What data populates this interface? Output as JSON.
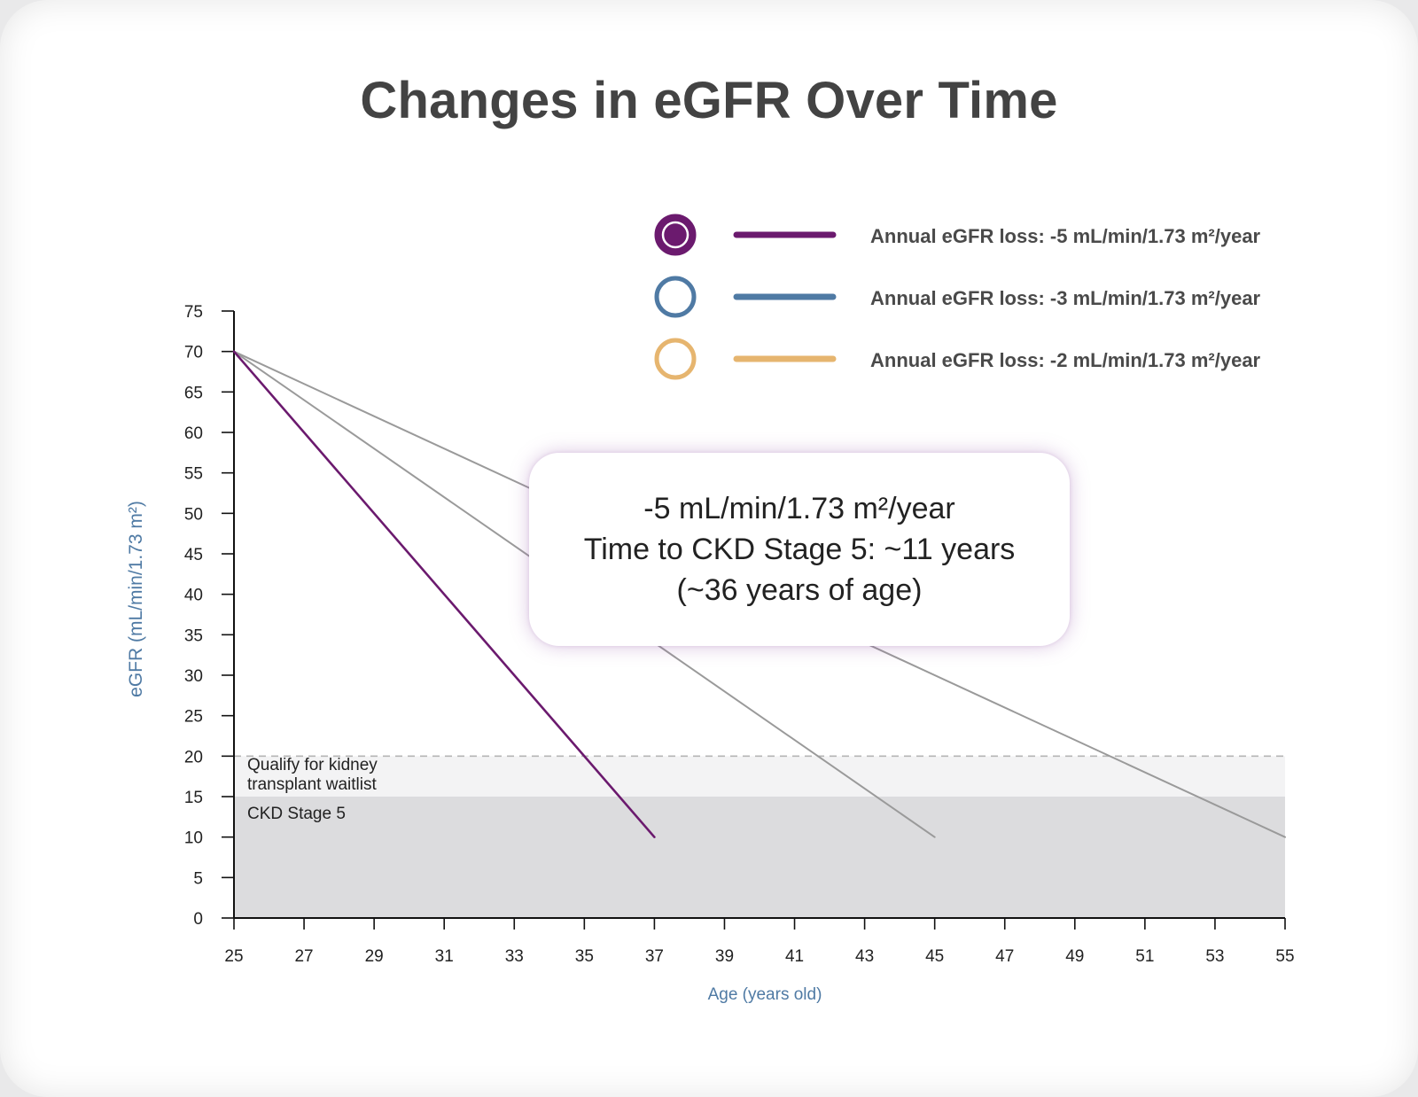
{
  "title": "Changes in eGFR Over Time",
  "legend": [
    {
      "label": "Annual eGFR loss: -5 mL/min/1.73 m²/year",
      "color": "#6b1a6e",
      "marker": "filled-ring"
    },
    {
      "label": "Annual eGFR loss: -3 mL/min/1.73 m²/year",
      "color": "#4f7aa4",
      "marker": "ring"
    },
    {
      "label": "Annual eGFR loss: -2 mL/min/1.73 m²/year",
      "color": "#e6b56f",
      "marker": "ring"
    }
  ],
  "callout": {
    "line1": "-5 mL/min/1.73 m²/year",
    "line2": "Time to CKD Stage 5: ~11 years",
    "line3": "(~36 years of age)"
  },
  "bands": {
    "waitlist_label_1": "Qualify for kidney",
    "waitlist_label_2": "transplant waitlist",
    "stage5_label": "CKD Stage 5"
  },
  "chart_data": {
    "type": "line",
    "xlabel": "Age (years old)",
    "ylabel": "eGFR (mL/min/1.73 m²)",
    "xlim": [
      25,
      55
    ],
    "ylim": [
      0,
      75
    ],
    "xticks": [
      25,
      27,
      29,
      31,
      33,
      35,
      37,
      39,
      41,
      43,
      45,
      47,
      49,
      51,
      53,
      55
    ],
    "yticks": [
      0,
      5,
      10,
      15,
      20,
      25,
      30,
      35,
      40,
      45,
      50,
      55,
      60,
      65,
      70,
      75
    ],
    "series": [
      {
        "name": "Annual eGFR loss: -5 mL/min/1.73 m²/year",
        "color": "#6b1a6e",
        "x": [
          25,
          37
        ],
        "y": [
          70,
          10
        ]
      },
      {
        "name": "Annual eGFR loss: -3 mL/min/1.73 m²/year",
        "color": "#9a9a9a",
        "x": [
          25,
          45
        ],
        "y": [
          70,
          10
        ]
      },
      {
        "name": "Annual eGFR loss: -2 mL/min/1.73 m²/year",
        "color": "#9a9a9a",
        "x": [
          25,
          55
        ],
        "y": [
          70,
          10
        ]
      }
    ],
    "reference_bands": [
      {
        "label": "Qualify for kidney transplant waitlist",
        "y0": 15,
        "y1": 20,
        "color": "#f3f3f4"
      },
      {
        "label": "CKD Stage 5",
        "y0": 0,
        "y1": 15,
        "color": "#dcdcde"
      }
    ],
    "reference_lines": [
      {
        "y": 20,
        "style": "dashed",
        "color": "#b5b5b5"
      }
    ],
    "legend_position": "top-right",
    "grid": false
  }
}
